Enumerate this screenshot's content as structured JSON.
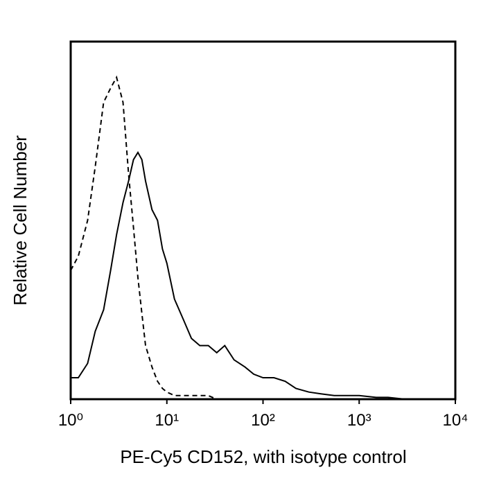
{
  "chart_data": {
    "type": "line",
    "xlabel": "PE-Cy5 CD152, with isotype control",
    "ylabel": "Relative Cell Number",
    "xscale": "log",
    "xlim": [
      1,
      10000
    ],
    "xticks": [
      {
        "value": 1,
        "label": "10⁰"
      },
      {
        "value": 10,
        "label": "10¹"
      },
      {
        "value": 100,
        "label": "10²"
      },
      {
        "value": 1000,
        "label": "10³"
      },
      {
        "value": 10000,
        "label": "10⁴"
      }
    ],
    "ylim": [
      0,
      100
    ],
    "x": [
      1,
      1.2,
      1.5,
      1.8,
      2.2,
      2.6,
      3,
      3.5,
      4,
      4.5,
      5,
      5.5,
      6,
      7,
      8,
      9,
      10,
      12,
      15,
      18,
      22,
      27,
      33,
      40,
      50,
      65,
      80,
      100,
      130,
      170,
      220,
      300,
      400,
      550,
      750,
      1000,
      1500,
      2000,
      3000,
      5000,
      10000
    ],
    "series": [
      {
        "color": "#000000",
        "dash": "solid",
        "values": [
          6,
          6,
          10,
          19,
          25,
          36,
          46,
          55,
          61,
          67,
          69,
          67,
          61,
          53,
          50,
          42,
          38,
          28,
          22,
          17,
          15,
          15,
          13,
          15,
          11,
          9,
          7,
          6,
          6,
          5,
          3,
          2,
          1.5,
          1,
          1,
          1,
          0.5,
          0.5,
          0,
          0,
          0
        ]
      },
      {
        "color": "#000000",
        "dash": "dashed",
        "values": [
          36,
          40,
          50,
          65,
          83,
          87,
          90,
          83,
          63,
          48,
          34,
          24,
          15,
          9,
          5,
          3,
          2,
          1,
          1,
          1,
          1,
          1,
          0,
          0,
          0,
          0,
          0,
          0,
          0,
          0,
          0,
          0,
          0,
          0,
          0,
          0,
          0,
          0,
          0,
          0,
          0
        ]
      }
    ]
  }
}
